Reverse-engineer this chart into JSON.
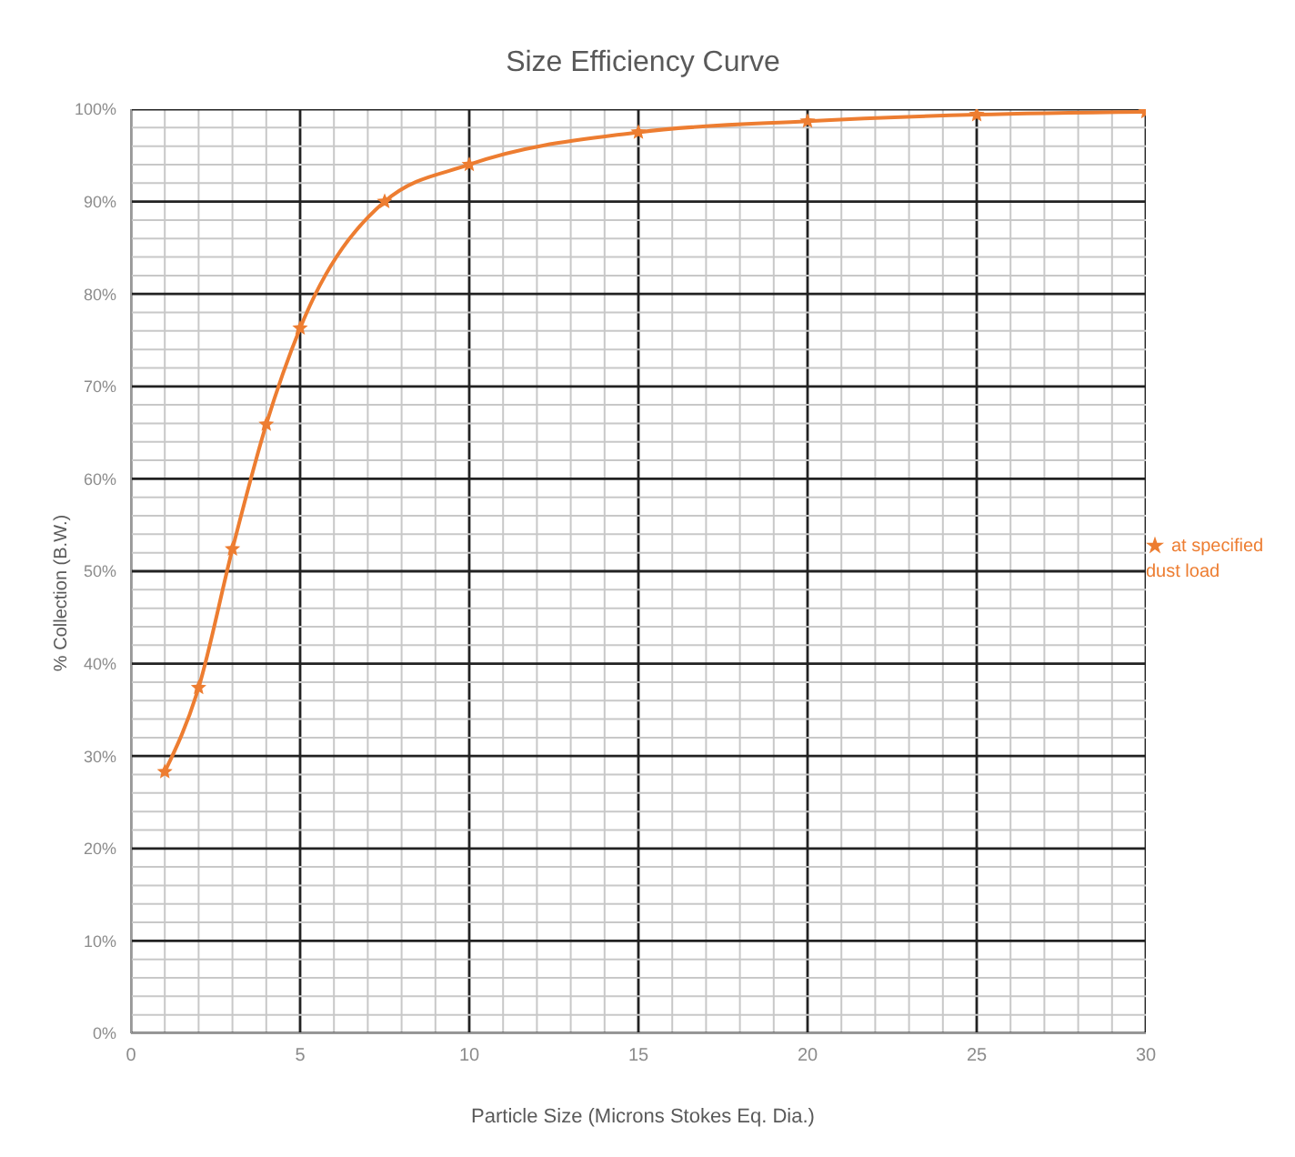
{
  "chart_data": {
    "type": "line",
    "title": "Size Efficiency Curve",
    "xlabel": "Particle Size (Microns Stokes Eq. Dia.)",
    "ylabel": "% Collection (B.W.)",
    "x": [
      1,
      2,
      3,
      4,
      5,
      7.5,
      10,
      15,
      20,
      25,
      30
    ],
    "series": [
      {
        "name": "at specified dust load",
        "color": "#ed7d31",
        "values": [
          28.3,
          37.4,
          52.4,
          65.9,
          76.3,
          90,
          94,
          97.5,
          98.7,
          99.4,
          99.7
        ]
      }
    ],
    "xlim": [
      0,
      30
    ],
    "xticks": [
      0,
      {
        "value": 1,
        "label": null
      },
      {
        "value": 2,
        "label": null
      },
      {
        "value": 3,
        "label": null
      },
      {
        "value": 4,
        "label": null
      },
      5,
      {
        "value": 6,
        "label": null
      },
      {
        "value": 7,
        "label": null
      },
      {
        "value": 8,
        "label": null
      },
      {
        "value": 9,
        "label": null
      },
      10,
      {
        "value": 11,
        "label": null
      },
      {
        "value": 12,
        "label": null
      },
      {
        "value": 13,
        "label": null
      },
      {
        "value": 14,
        "label": null
      },
      15,
      {
        "value": 16,
        "label": null
      },
      {
        "value": 17,
        "label": null
      },
      {
        "value": 18,
        "label": null
      },
      {
        "value": 19,
        "label": null
      },
      20,
      {
        "value": 21,
        "label": null
      },
      {
        "value": 22,
        "label": null
      },
      {
        "value": 23,
        "label": null
      },
      {
        "value": 24,
        "label": null
      },
      25,
      {
        "value": 26,
        "label": null
      },
      {
        "value": 27,
        "label": null
      },
      {
        "value": 28,
        "label": null
      },
      {
        "value": 29,
        "label": null
      },
      30
    ],
    "ylim": [
      0,
      100
    ],
    "yticks": [
      {
        "value": 0,
        "label": "0%"
      },
      {
        "value": 2,
        "label": null
      },
      {
        "value": 4,
        "label": null
      },
      {
        "value": 6,
        "label": null
      },
      {
        "value": 8,
        "label": null
      },
      {
        "value": 10,
        "label": "10%"
      },
      {
        "value": 12,
        "label": null
      },
      {
        "value": 14,
        "label": null
      },
      {
        "value": 16,
        "label": null
      },
      {
        "value": 18,
        "label": null
      },
      {
        "value": 20,
        "label": "20%"
      },
      {
        "value": 22,
        "label": null
      },
      {
        "value": 24,
        "label": null
      },
      {
        "value": 26,
        "label": null
      },
      {
        "value": 28,
        "label": null
      },
      {
        "value": 30,
        "label": "30%"
      },
      {
        "value": 32,
        "label": null
      },
      {
        "value": 34,
        "label": null
      },
      {
        "value": 36,
        "label": null
      },
      {
        "value": 38,
        "label": null
      },
      {
        "value": 40,
        "label": "40%"
      },
      {
        "value": 42,
        "label": null
      },
      {
        "value": 44,
        "label": null
      },
      {
        "value": 46,
        "label": null
      },
      {
        "value": 48,
        "label": null
      },
      {
        "value": 50,
        "label": "50%"
      },
      {
        "value": 52,
        "label": null
      },
      {
        "value": 54,
        "label": null
      },
      {
        "value": 56,
        "label": null
      },
      {
        "value": 58,
        "label": null
      },
      {
        "value": 60,
        "label": "60%"
      },
      {
        "value": 62,
        "label": null
      },
      {
        "value": 64,
        "label": null
      },
      {
        "value": 66,
        "label": null
      },
      {
        "value": 68,
        "label": null
      },
      {
        "value": 70,
        "label": "70%"
      },
      {
        "value": 72,
        "label": null
      },
      {
        "value": 74,
        "label": null
      },
      {
        "value": 76,
        "label": null
      },
      {
        "value": 78,
        "label": null
      },
      {
        "value": 80,
        "label": "80%"
      },
      {
        "value": 82,
        "label": null
      },
      {
        "value": 84,
        "label": null
      },
      {
        "value": 86,
        "label": null
      },
      {
        "value": 88,
        "label": null
      },
      {
        "value": 90,
        "label": "90%"
      },
      {
        "value": 92,
        "label": null
      },
      {
        "value": 94,
        "label": null
      },
      {
        "value": 96,
        "label": null
      },
      {
        "value": 98,
        "label": null
      },
      {
        "value": 100,
        "label": "100%"
      }
    ],
    "grid": true,
    "legend": "right",
    "marker": "star",
    "line_style": "solid"
  }
}
